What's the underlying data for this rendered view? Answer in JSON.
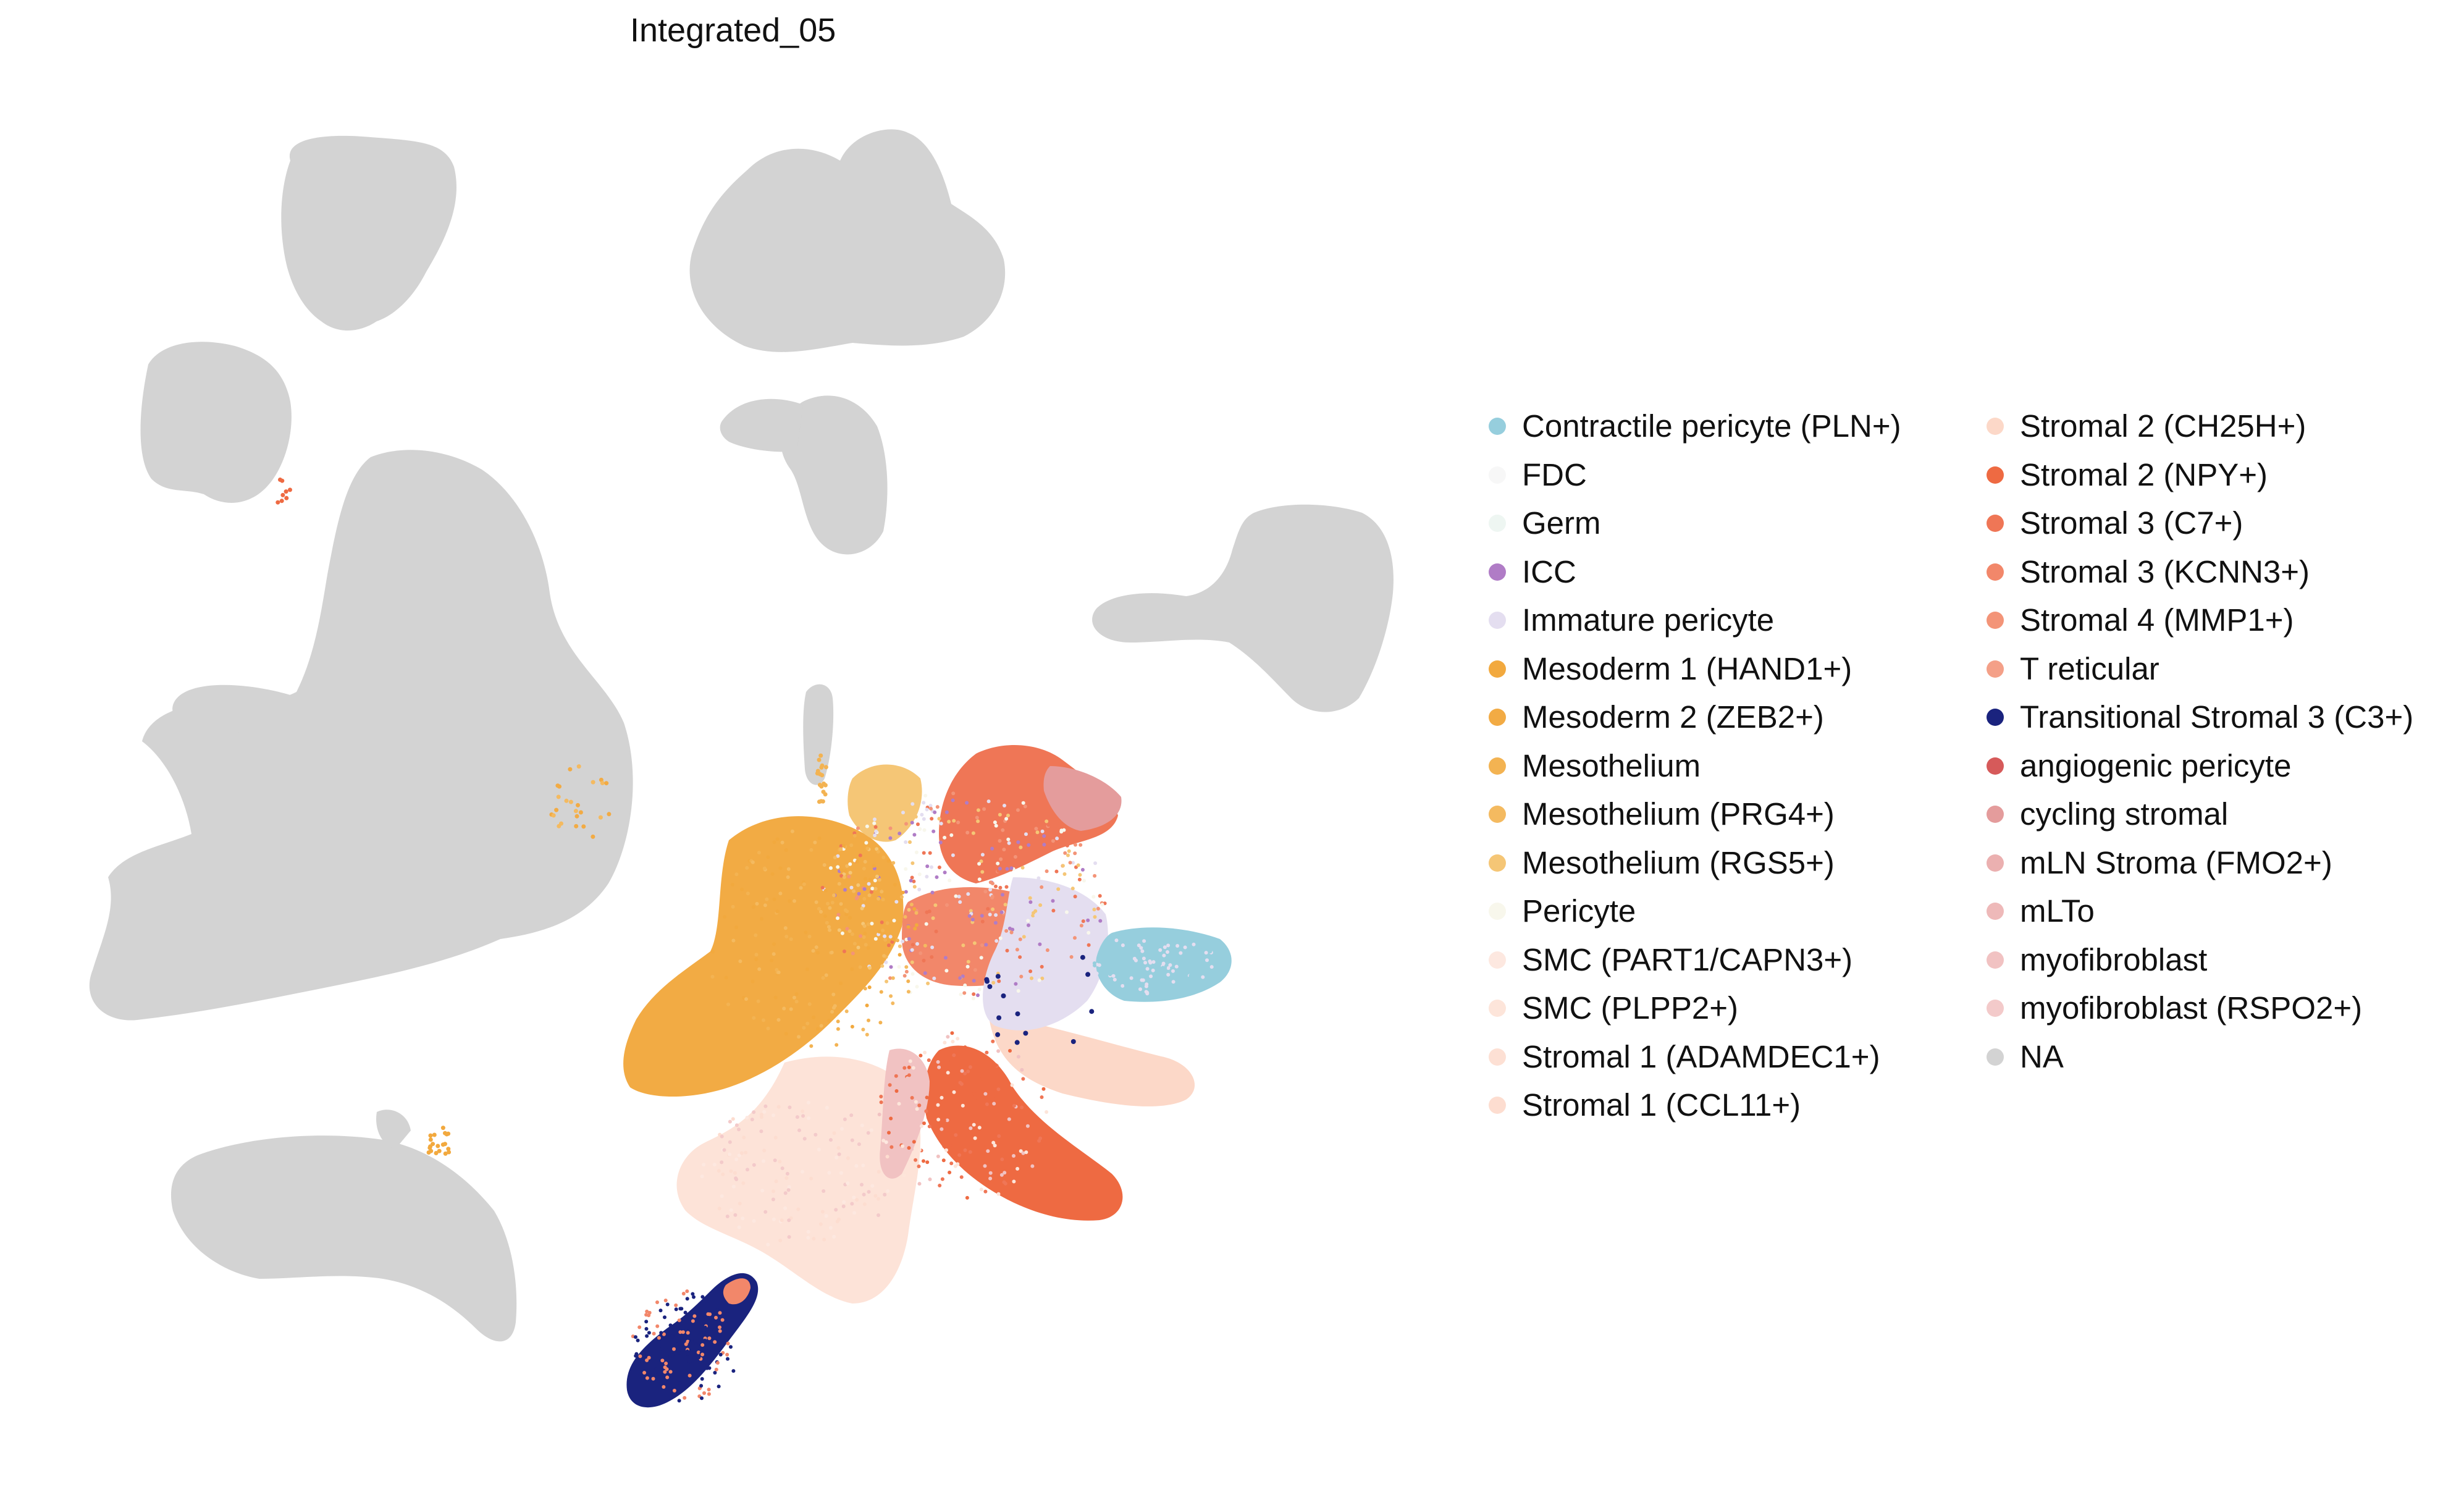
{
  "chart_data": {
    "type": "scatter",
    "title": "Integrated_05",
    "xlabel": "",
    "ylabel": "",
    "grid": false,
    "axes_visible": false,
    "legend_position": "right",
    "legend_columns": 2,
    "categories": [
      {
        "name": "Contractile pericyte (PLN+)",
        "color": "#96cedd"
      },
      {
        "name": "FDC",
        "color": "#f7f7f7"
      },
      {
        "name": "Germ",
        "color": "#eef6f2"
      },
      {
        "name": "ICC",
        "color": "#b07cc6"
      },
      {
        "name": "Immature pericyte",
        "color": "#e4def0"
      },
      {
        "name": "Mesoderm 1 (HAND1+)",
        "color": "#f2a93e"
      },
      {
        "name": "Mesoderm 2 (ZEB2+)",
        "color": "#f2ab44"
      },
      {
        "name": "Mesothelium",
        "color": "#f3b352"
      },
      {
        "name": "Mesothelium (PRG4+)",
        "color": "#f4ba60"
      },
      {
        "name": "Mesothelium (RGS5+)",
        "color": "#f5c676"
      },
      {
        "name": "Pericyte",
        "color": "#f8f7ec"
      },
      {
        "name": "SMC (PART1/CAPN3+)",
        "color": "#fde8e0"
      },
      {
        "name": "SMC (PLPP2+)",
        "color": "#fde5da"
      },
      {
        "name": "Stromal 1 (ADAMDEC1+)",
        "color": "#fde0d4"
      },
      {
        "name": "Stromal 1 (CCL11+)",
        "color": "#fdddd0"
      },
      {
        "name": "Stromal 2 (CH25H+)",
        "color": "#fcd8c8"
      },
      {
        "name": "Stromal 2 (NPY+)",
        "color": "#ee6a42"
      },
      {
        "name": "Stromal 3 (C7+)",
        "color": "#ef7656"
      },
      {
        "name": "Stromal 3 (KCNN3+)",
        "color": "#f2876a"
      },
      {
        "name": "Stromal 4 (MMP1+)",
        "color": "#f39478"
      },
      {
        "name": "T reticular",
        "color": "#f4a088"
      },
      {
        "name": "Transitional Stromal 3 (C3+)",
        "color": "#1a237e"
      },
      {
        "name": "angiogenic pericyte",
        "color": "#d65a5a"
      },
      {
        "name": "cycling stromal",
        "color": "#e49c9c"
      },
      {
        "name": "mLN Stroma (FMO2+)",
        "color": "#ebb0b0"
      },
      {
        "name": "mLTo",
        "color": "#eeb9b9"
      },
      {
        "name": "myofibroblast",
        "color": "#f1c2c2"
      },
      {
        "name": "myofibroblast (RSPO2+)",
        "color": "#f3caca"
      },
      {
        "name": "NA",
        "color": "#d3d3d3"
      }
    ]
  }
}
